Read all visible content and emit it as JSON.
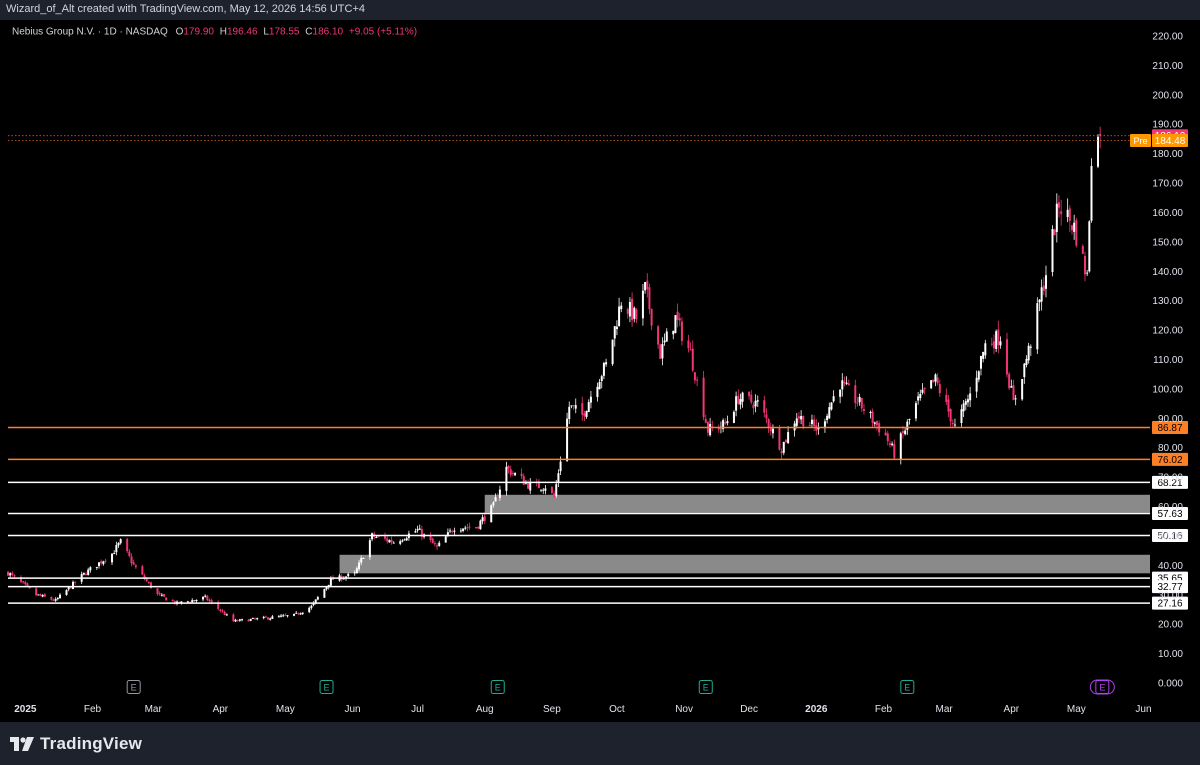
{
  "watermark": "Wizard_of_Alt created with TradingView.com, May 12, 2026 14:56 UTC+4",
  "brand": "TradingView",
  "colors": {
    "background": "#000000",
    "up": "#ffffff",
    "down": "#f23674",
    "orange": "#ff7f27",
    "zone": "#8a8a8a",
    "axis_text": "#e0e3eb",
    "pre_bg": "#ff9800"
  },
  "legend": {
    "symbol": "Nebius Group N.V. · 1D · NASDAQ",
    "o_label": "O",
    "o": "179.90",
    "h_label": "H",
    "h": "196.46",
    "l_label": "L",
    "l": "178.55",
    "c_label": "C",
    "c": "186.10",
    "change": "+9.05 (+5.11%)"
  },
  "chart_data": {
    "type": "candlestick",
    "title": "Nebius Group N.V. · 1D · NASDAQ",
    "ylim": [
      0,
      220
    ],
    "y_ticks": [
      "0.000",
      "10.00",
      "20.00",
      "30.00",
      "40.00",
      "50.00",
      "60.00",
      "70.00",
      "80.00",
      "90.00",
      "100.00",
      "110.00",
      "120.00",
      "130.00",
      "140.00",
      "150.00",
      "160.00",
      "170.00",
      "180.00",
      "190.00",
      "200.00",
      "210.00",
      "220.00"
    ],
    "x_ticks": [
      {
        "label": "2025",
        "bold": true,
        "date": "2025-01-01"
      },
      {
        "label": "Feb",
        "date": "2025-02-01"
      },
      {
        "label": "Mar",
        "date": "2025-03-01"
      },
      {
        "label": "Apr",
        "date": "2025-04-01"
      },
      {
        "label": "May",
        "date": "2025-05-01"
      },
      {
        "label": "Jun",
        "date": "2025-06-01"
      },
      {
        "label": "Jul",
        "date": "2025-07-01"
      },
      {
        "label": "Aug",
        "date": "2025-08-01"
      },
      {
        "label": "Sep",
        "date": "2025-09-01"
      },
      {
        "label": "Oct",
        "date": "2025-10-01"
      },
      {
        "label": "Nov",
        "date": "2025-11-01"
      },
      {
        "label": "Dec",
        "date": "2025-12-01"
      },
      {
        "label": "2026",
        "bold": true,
        "date": "2026-01-01"
      },
      {
        "label": "Feb",
        "date": "2026-02-01"
      },
      {
        "label": "Mar",
        "date": "2026-03-01"
      },
      {
        "label": "Apr",
        "date": "2026-04-01"
      },
      {
        "label": "May",
        "date": "2026-05-01"
      },
      {
        "label": "Jun",
        "date": "2026-06-01"
      }
    ],
    "last_price": {
      "value": 186.1,
      "label": "186.10"
    },
    "pre_market": {
      "value": 184.48,
      "label": "184.48",
      "tag": "Pre"
    },
    "levels": [
      {
        "value": 86.87,
        "label": "86.87",
        "color": "#ff7f27"
      },
      {
        "value": 76.02,
        "label": "76.02",
        "color": "#ff7f27"
      },
      {
        "value": 68.21,
        "label": "68.21",
        "color": "#ffffff"
      },
      {
        "value": 57.63,
        "label": "57.63",
        "color": "#ffffff"
      },
      {
        "value": 50.16,
        "label": "50.16",
        "color": "#ffffff"
      },
      {
        "value": 35.65,
        "label": "35.65",
        "color": "#ffffff"
      },
      {
        "value": 32.77,
        "label": "32.77",
        "color": "#ffffff"
      },
      {
        "value": 27.16,
        "label": "27.16",
        "color": "#ffffff"
      }
    ],
    "zones": [
      {
        "from_date": "2025-08-01",
        "low": 57.9,
        "high": 64.0
      },
      {
        "from_date": "2025-05-26",
        "low": 37.3,
        "high": 43.6
      }
    ],
    "earnings": [
      {
        "date": "2025-02-20",
        "label": "E",
        "style": "grey"
      },
      {
        "date": "2025-05-20",
        "label": "E",
        "style": "green"
      },
      {
        "date": "2025-08-07",
        "label": "E",
        "style": "green"
      },
      {
        "date": "2025-11-11",
        "label": "E",
        "style": "green"
      },
      {
        "date": "2026-02-12",
        "label": "E",
        "style": "green"
      },
      {
        "date": "2026-05-13",
        "label": "E",
        "style": "purple"
      }
    ],
    "series_anchors": [
      {
        "date": "2024-12-24",
        "close": 37.5
      },
      {
        "date": "2025-01-06",
        "close": 30
      },
      {
        "date": "2025-01-15",
        "close": 28
      },
      {
        "date": "2025-01-28",
        "close": 37
      },
      {
        "date": "2025-02-10",
        "close": 44
      },
      {
        "date": "2025-02-14",
        "close": 48
      },
      {
        "date": "2025-02-20",
        "close": 40
      },
      {
        "date": "2025-03-03",
        "close": 30
      },
      {
        "date": "2025-03-12",
        "close": 27
      },
      {
        "date": "2025-03-25",
        "close": 29
      },
      {
        "date": "2025-04-07",
        "close": 21
      },
      {
        "date": "2025-04-21",
        "close": 22
      },
      {
        "date": "2025-05-05",
        "close": 23
      },
      {
        "date": "2025-05-13",
        "close": 26
      },
      {
        "date": "2025-05-22",
        "close": 35
      },
      {
        "date": "2025-06-02",
        "close": 37
      },
      {
        "date": "2025-06-10",
        "close": 50
      },
      {
        "date": "2025-06-20",
        "close": 48
      },
      {
        "date": "2025-07-01",
        "close": 52
      },
      {
        "date": "2025-07-10",
        "close": 46
      },
      {
        "date": "2025-07-18",
        "close": 53
      },
      {
        "date": "2025-07-28",
        "close": 53
      },
      {
        "date": "2025-08-05",
        "close": 60
      },
      {
        "date": "2025-08-11",
        "close": 73
      },
      {
        "date": "2025-08-22",
        "close": 67
      },
      {
        "date": "2025-08-29",
        "close": 67
      },
      {
        "date": "2025-09-02",
        "close": 63
      },
      {
        "date": "2025-09-09",
        "close": 94
      },
      {
        "date": "2025-09-15",
        "close": 91
      },
      {
        "date": "2025-09-22",
        "close": 103
      },
      {
        "date": "2025-09-26",
        "close": 108
      },
      {
        "date": "2025-10-03",
        "close": 130
      },
      {
        "date": "2025-10-10",
        "close": 124
      },
      {
        "date": "2025-10-14",
        "close": 134
      },
      {
        "date": "2025-10-21",
        "close": 112
      },
      {
        "date": "2025-10-28",
        "close": 124
      },
      {
        "date": "2025-11-04",
        "close": 112
      },
      {
        "date": "2025-11-12",
        "close": 86
      },
      {
        "date": "2025-11-20",
        "close": 88
      },
      {
        "date": "2025-11-26",
        "close": 97
      },
      {
        "date": "2025-12-05",
        "close": 95
      },
      {
        "date": "2025-12-16",
        "close": 80
      },
      {
        "date": "2025-12-23",
        "close": 91
      },
      {
        "date": "2026-01-02",
        "close": 86
      },
      {
        "date": "2026-01-12",
        "close": 102
      },
      {
        "date": "2026-01-21",
        "close": 95
      },
      {
        "date": "2026-02-02",
        "close": 84
      },
      {
        "date": "2026-02-06",
        "close": 78
      },
      {
        "date": "2026-02-17",
        "close": 96
      },
      {
        "date": "2026-02-25",
        "close": 103
      },
      {
        "date": "2026-03-06",
        "close": 87
      },
      {
        "date": "2026-03-13",
        "close": 98
      },
      {
        "date": "2026-03-20",
        "close": 115
      },
      {
        "date": "2026-03-27",
        "close": 118
      },
      {
        "date": "2026-04-02",
        "close": 95
      },
      {
        "date": "2026-04-09",
        "close": 113
      },
      {
        "date": "2026-04-16",
        "close": 136
      },
      {
        "date": "2026-04-23",
        "close": 163
      },
      {
        "date": "2026-04-30",
        "close": 155
      },
      {
        "date": "2026-05-06",
        "close": 138
      },
      {
        "date": "2026-05-08",
        "close": 180
      },
      {
        "date": "2026-05-12",
        "close": 186.1
      }
    ]
  }
}
